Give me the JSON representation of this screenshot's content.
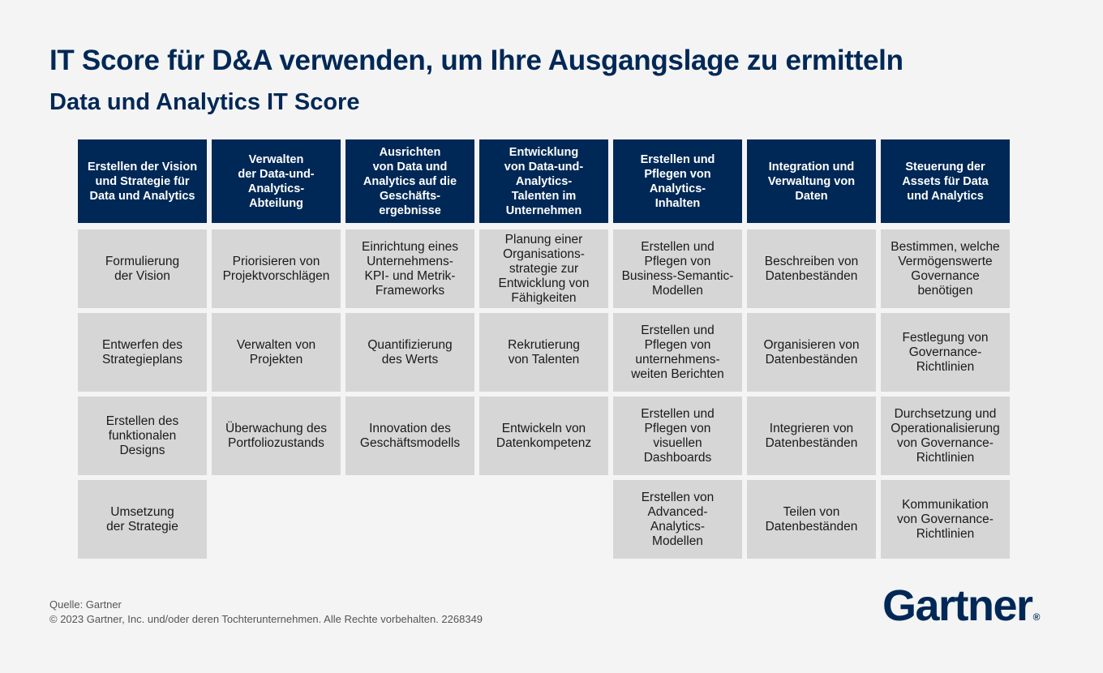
{
  "title": "IT Score für D&A verwenden, um Ihre Ausgangslage zu ermitteln",
  "subtitle": "Data und Analytics IT Score",
  "columns": [
    {
      "header": "Erstellen der Vision\nund Strategie für\nData und Analytics",
      "items": [
        "Formulierung\nder Vision",
        "Entwerfen des\nStrategieplans",
        "Erstellen des\nfunktionalen\nDesigns",
        "Umsetzung\nder Strategie"
      ]
    },
    {
      "header": "Verwalten\nder Data-und-\nAnalytics-\nAbteilung",
      "items": [
        "Priorisieren von\nProjektvorschlägen",
        "Verwalten von\nProjekten",
        "Überwachung des\nPortfoliozustands"
      ]
    },
    {
      "header": "Ausrichten\nvon Data und\nAnalytics auf die\nGeschäfts-\nergebnisse",
      "items": [
        "Einrichtung eines\nUnternehmens-\nKPI- und Metrik-\nFrameworks",
        "Quantifizierung\ndes Werts",
        "Innovation des\nGeschäftsmodells"
      ]
    },
    {
      "header": "Entwicklung\nvon Data-und-\nAnalytics-\nTalenten im\nUnternehmen",
      "items": [
        "Planung einer\nOrganisations-\nstrategie zur\nEntwicklung von\nFähigkeiten",
        "Rekrutierung\nvon Talenten",
        "Entwickeln von\nDatenkompetenz"
      ]
    },
    {
      "header": "Erstellen und\nPflegen von\nAnalytics-\nInhalten",
      "items": [
        "Erstellen und\nPflegen von\nBusiness-Semantic-\nModellen",
        "Erstellen und\nPflegen von\nunternehmens-\nweiten Berichten",
        "Erstellen und\nPflegen von\nvisuellen\nDashboards",
        "Erstellen von\nAdvanced-\nAnalytics-\nModellen"
      ]
    },
    {
      "header": "Integration und\nVerwaltung von\nDaten",
      "items": [
        "Beschreiben von\nDatenbeständen",
        "Organisieren von\nDatenbeständen",
        "Integrieren von\nDatenbeständen",
        "Teilen von\nDatenbeständen"
      ]
    },
    {
      "header": "Steuerung der\nAssets für Data\nund Analytics",
      "items": [
        "Bestimmen, welche\nVermögenswerte\nGovernance\nbenötigen",
        "Festlegung von\nGovernance-\nRichtlinien",
        "Durchsetzung und\nOperationalisierung\nvon Governance-\nRichtlinien",
        "Kommunikation\nvon Governance-\nRichtlinien"
      ]
    }
  ],
  "footer": {
    "source": "Quelle: Gartner",
    "copyright": "© 2023 Gartner, Inc. und/oder deren Tochterunternehmen. Alle Rechte vorbehalten. 2268349"
  },
  "logo": {
    "text": "Gartner",
    "mark": "®"
  },
  "colors": {
    "navy": "#002856",
    "cell": "#d6d6d6",
    "background": "#f4f4f4"
  }
}
